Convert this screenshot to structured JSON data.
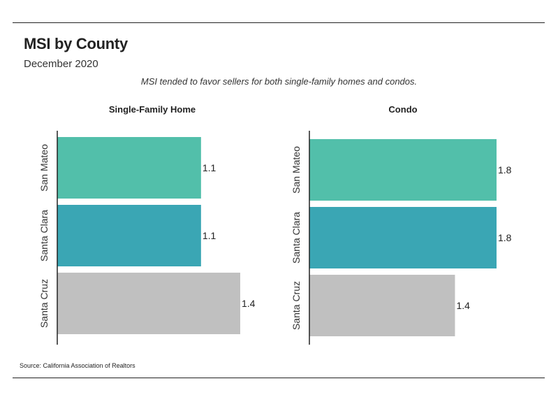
{
  "header": {
    "title": "MSI by County",
    "subtitle": "December 2020",
    "note": "MSI tended to favor sellers for both single-family homes and condos."
  },
  "footer": {
    "source": "Source:  California Association of Realtors"
  },
  "colors": {
    "San Mateo": "#52bfaa",
    "Santa Clara": "#3aa6b4",
    "Santa Cruz": "#c0c0c0",
    "axis": "#222222"
  },
  "chart_data": [
    {
      "type": "bar",
      "orientation": "horizontal",
      "title": "Single-Family Home",
      "categories": [
        "San Mateo",
        "Santa Clara",
        "Santa Cruz"
      ],
      "values": [
        1.1,
        1.1,
        1.4
      ],
      "xlim": [
        0,
        1.4
      ],
      "grid": false
    },
    {
      "type": "bar",
      "orientation": "horizontal",
      "title": "Condo",
      "categories": [
        "San Mateo",
        "Santa Clara",
        "Santa Cruz"
      ],
      "values": [
        1.8,
        1.8,
        1.4
      ],
      "xlim": [
        0,
        1.8
      ],
      "grid": false
    }
  ]
}
